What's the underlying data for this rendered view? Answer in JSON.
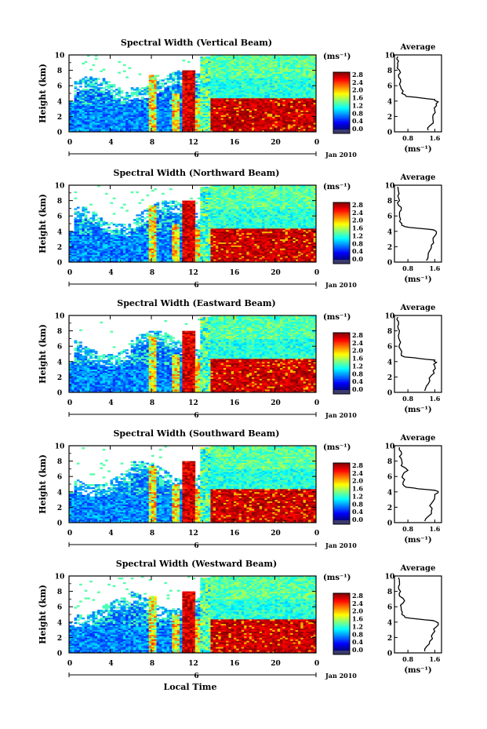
{
  "figure": {
    "xlabel_bottom": "Local Time",
    "date_label": "Jan 2010",
    "day_label": "6"
  },
  "chart_data": [
    {
      "type": "heatmap",
      "title": "Spectral Width (Vertical Beam)",
      "xlabel": "",
      "ylabel": "Height (km)",
      "xlim": [
        0,
        24
      ],
      "ylim": [
        0,
        10
      ],
      "x_ticks": [
        "0",
        "4",
        "8",
        "12",
        "16",
        "20",
        "0"
      ],
      "y_ticks": [
        "0",
        "2",
        "4",
        "6",
        "8",
        "10"
      ],
      "colorbar": {
        "unit": "(ms⁻¹)",
        "range": [
          0.0,
          2.8
        ],
        "tick_labels": [
          "2.8",
          "2.4",
          "2.0",
          "1.6",
          "1.2",
          "0.8",
          "0.4",
          "0.0"
        ]
      },
      "profile": {
        "title": "Average",
        "xlabel": "(ms⁻¹)",
        "x_ticks": [
          "0.8",
          "1.6"
        ],
        "xlim": [
          0.4,
          1.8
        ],
        "ylim": [
          0,
          10
        ],
        "y_ticks": [
          "0",
          "2",
          "4",
          "6",
          "8",
          "10"
        ],
        "height_km": [
          0.2,
          0.8,
          1.5,
          2.2,
          2.8,
          3.4,
          3.9,
          4.2,
          4.4,
          4.6,
          5.0,
          5.6,
          6.2,
          6.8,
          7.4,
          8.0,
          8.6,
          9.2,
          9.8
        ],
        "width_ms": [
          1.4,
          1.45,
          1.55,
          1.55,
          1.6,
          1.65,
          1.7,
          1.6,
          1.2,
          0.75,
          0.62,
          0.6,
          0.55,
          0.58,
          0.52,
          0.55,
          0.5,
          0.52,
          0.5
        ]
      }
    },
    {
      "type": "heatmap",
      "title": "Spectral Width (Northward Beam)",
      "xlabel": "",
      "ylabel": "Height (km)",
      "xlim": [
        0,
        24
      ],
      "ylim": [
        0,
        10
      ],
      "x_ticks": [
        "0",
        "4",
        "8",
        "12",
        "16",
        "20",
        "0"
      ],
      "y_ticks": [
        "0",
        "2",
        "4",
        "6",
        "8",
        "10"
      ],
      "colorbar": {
        "unit": "(ms⁻¹)",
        "range": [
          0.0,
          2.8
        ],
        "tick_labels": [
          "2.8",
          "2.4",
          "2.0",
          "1.6",
          "1.2",
          "0.8",
          "0.4",
          "0.0"
        ]
      },
      "profile": {
        "title": "Average",
        "xlabel": "(ms⁻¹)",
        "x_ticks": [
          "0.8",
          "1.6"
        ],
        "xlim": [
          0.4,
          1.8
        ],
        "ylim": [
          0,
          10
        ],
        "y_ticks": [
          "0",
          "2",
          "4",
          "6",
          "8",
          "10"
        ],
        "height_km": [
          0.2,
          0.8,
          1.5,
          2.2,
          2.8,
          3.4,
          3.9,
          4.2,
          4.4,
          4.6,
          5.0,
          5.6,
          6.2,
          6.8,
          7.4,
          8.0,
          8.6,
          9.2,
          9.8
        ],
        "width_ms": [
          1.35,
          1.4,
          1.45,
          1.5,
          1.55,
          1.6,
          1.65,
          1.55,
          1.1,
          0.72,
          0.62,
          0.58,
          0.55,
          0.6,
          0.52,
          0.55,
          0.5,
          0.52,
          0.5
        ]
      }
    },
    {
      "type": "heatmap",
      "title": "Spectral Width (Eastward Beam)",
      "xlabel": "",
      "ylabel": "Height (km)",
      "xlim": [
        0,
        24
      ],
      "ylim": [
        0,
        10
      ],
      "x_ticks": [
        "0",
        "4",
        "8",
        "12",
        "16",
        "20",
        "0"
      ],
      "y_ticks": [
        "0",
        "2",
        "4",
        "6",
        "8",
        "10"
      ],
      "colorbar": {
        "unit": "(ms⁻¹)",
        "range": [
          0.0,
          2.8
        ],
        "tick_labels": [
          "2.8",
          "2.4",
          "2.0",
          "1.6",
          "1.2",
          "0.8",
          "0.4",
          "0.0"
        ]
      },
      "profile": {
        "title": "Average",
        "xlabel": "(ms⁻¹)",
        "x_ticks": [
          "0.8",
          "1.6"
        ],
        "xlim": [
          0.4,
          1.8
        ],
        "ylim": [
          0,
          10
        ],
        "y_ticks": [
          "0",
          "2",
          "4",
          "6",
          "8",
          "10"
        ],
        "height_km": [
          0.2,
          0.8,
          1.5,
          2.2,
          2.8,
          3.4,
          3.9,
          4.2,
          4.4,
          4.6,
          5.0,
          5.6,
          6.2,
          6.8,
          7.4,
          8.0,
          8.6,
          9.2,
          9.8
        ],
        "width_ms": [
          1.3,
          1.35,
          1.45,
          1.5,
          1.55,
          1.6,
          1.65,
          1.6,
          1.15,
          0.7,
          0.6,
          0.58,
          0.55,
          0.55,
          0.52,
          0.55,
          0.5,
          0.52,
          0.5
        ]
      }
    },
    {
      "type": "heatmap",
      "title": "Spectral Width (Southward Beam)",
      "xlabel": "",
      "ylabel": "Height (km)",
      "xlim": [
        0,
        24
      ],
      "ylim": [
        0,
        10
      ],
      "x_ticks": [
        "0",
        "4",
        "8",
        "12",
        "16",
        "20",
        "0"
      ],
      "y_ticks": [
        "0",
        "2",
        "4",
        "6",
        "8",
        "10"
      ],
      "colorbar": {
        "unit": "(ms⁻¹)",
        "range": [
          0.0,
          2.8
        ],
        "tick_labels": [
          "2.8",
          "2.4",
          "2.0",
          "1.6",
          "1.2",
          "0.8",
          "0.4",
          "0.0"
        ]
      },
      "profile": {
        "title": "Average",
        "xlabel": "(ms⁻¹)",
        "x_ticks": [
          "0.8",
          "1.6"
        ],
        "xlim": [
          0.4,
          1.8
        ],
        "ylim": [
          0,
          10
        ],
        "y_ticks": [
          "0",
          "2",
          "4",
          "6",
          "8",
          "10"
        ],
        "height_km": [
          0.2,
          0.8,
          1.5,
          2.2,
          2.8,
          3.4,
          3.9,
          4.2,
          4.4,
          4.6,
          5.0,
          5.6,
          6.2,
          6.8,
          7.4,
          8.0,
          8.6,
          9.2,
          9.8
        ],
        "width_ms": [
          1.3,
          1.4,
          1.5,
          1.45,
          1.55,
          1.6,
          1.7,
          1.6,
          1.1,
          0.75,
          0.65,
          0.7,
          0.65,
          0.8,
          0.6,
          0.62,
          0.55,
          0.6,
          0.55
        ]
      }
    },
    {
      "type": "heatmap",
      "title": "Spectral Width (Westward Beam)",
      "xlabel": "",
      "ylabel": "Height (km)",
      "xlim": [
        0,
        24
      ],
      "ylim": [
        0,
        10
      ],
      "x_ticks": [
        "0",
        "4",
        "8",
        "12",
        "16",
        "20",
        "0"
      ],
      "y_ticks": [
        "0",
        "2",
        "4",
        "6",
        "8",
        "10"
      ],
      "colorbar": {
        "unit": "(ms⁻¹)",
        "range": [
          0.0,
          2.8
        ],
        "tick_labels": [
          "2.8",
          "2.4",
          "2.0",
          "1.6",
          "1.2",
          "0.8",
          "0.4",
          "0.0"
        ]
      },
      "profile": {
        "title": "Average",
        "xlabel": "(ms⁻¹)",
        "x_ticks": [
          "0.8",
          "1.6"
        ],
        "xlim": [
          0.4,
          1.8
        ],
        "ylim": [
          0,
          10
        ],
        "y_ticks": [
          "0",
          "2",
          "4",
          "6",
          "8",
          "10"
        ],
        "height_km": [
          0.2,
          0.8,
          1.5,
          2.2,
          2.8,
          3.4,
          3.9,
          4.2,
          4.4,
          4.6,
          5.0,
          5.6,
          6.2,
          6.8,
          7.4,
          8.0,
          8.6,
          9.2,
          9.8
        ],
        "width_ms": [
          1.3,
          1.35,
          1.45,
          1.5,
          1.6,
          1.65,
          1.7,
          1.55,
          1.1,
          0.72,
          0.62,
          0.6,
          0.58,
          0.7,
          0.55,
          0.58,
          0.52,
          0.55,
          0.52
        ]
      }
    }
  ]
}
